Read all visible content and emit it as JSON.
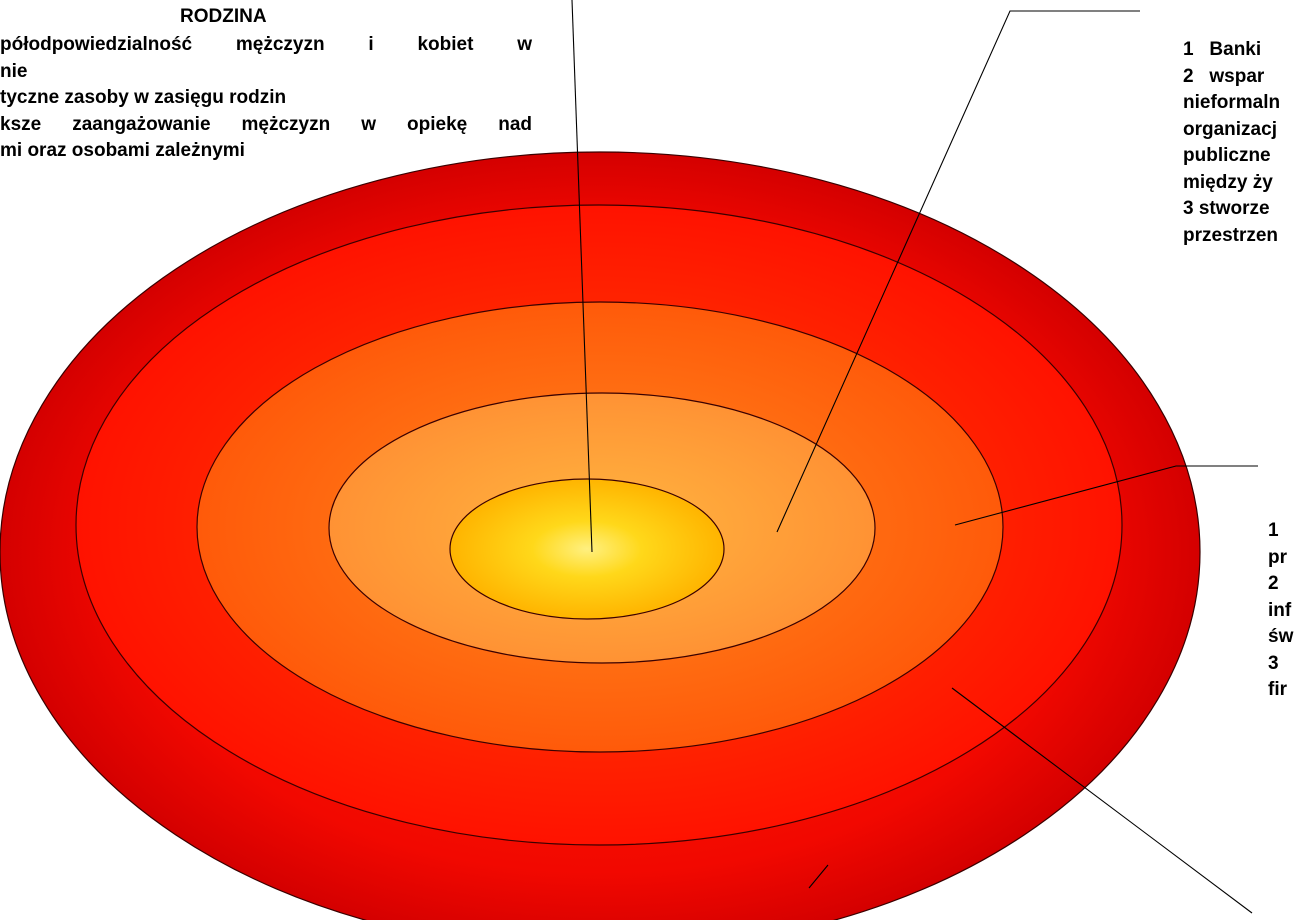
{
  "colors": {
    "outer_dark": "#db0000",
    "outer_red": "#fe0e00",
    "orange_mid": "#ff6a0a",
    "orange_light": "#ff9838",
    "yellow_core": "#ffd20a",
    "outline": "#3a0000",
    "leader_line": "#000000"
  },
  "family_panel": {
    "title": "RODZINA",
    "lines": [
      "półodpowiedzialność mężczyzn i kobiet w",
      "nie",
      "tyczne zasoby w zasięgu rodzin",
      "ksze zaangażowanie mężczyzn w opiekę nad",
      "mi oraz osobami zależnymi"
    ]
  },
  "top_right_panel": {
    "lines": [
      "1   Banki",
      "2   wspar",
      "nieformaln",
      "organizacj",
      "publiczne",
      "między ży",
      "3 stworze",
      "przestrzen"
    ]
  },
  "mid_right_panel": {
    "lines": [
      "1",
      "pr",
      "2",
      "inf",
      "św",
      "3",
      "fir"
    ]
  }
}
